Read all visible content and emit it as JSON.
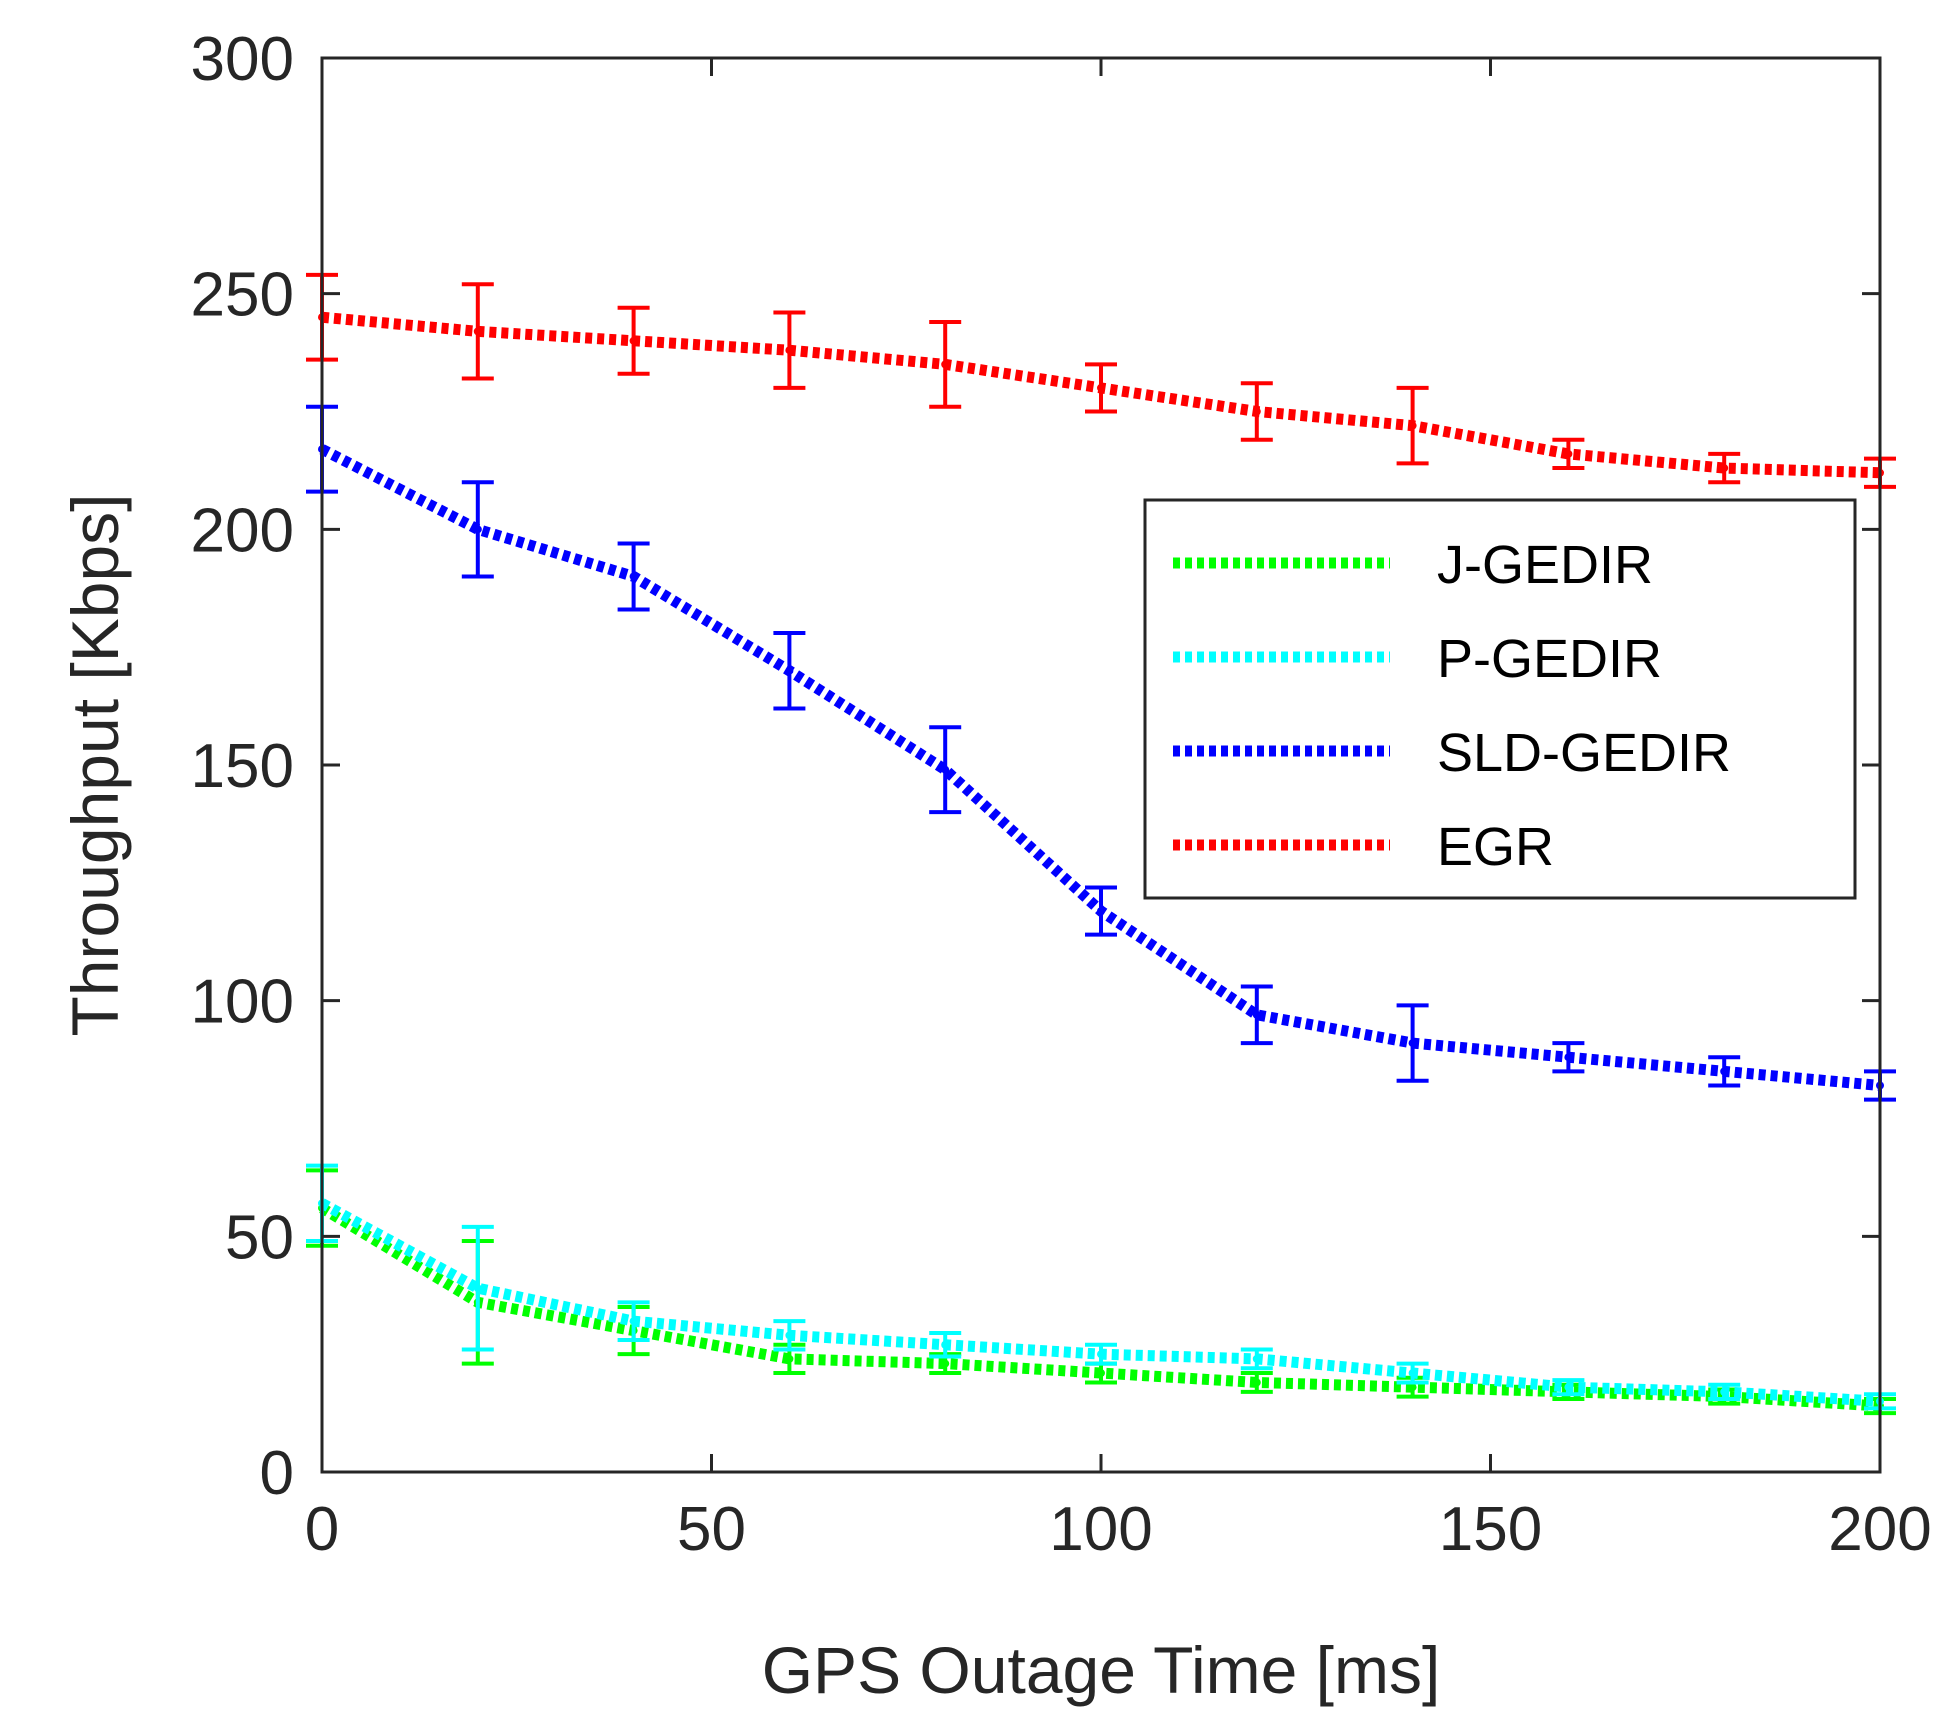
{
  "chart_data": {
    "type": "line",
    "xlabel": "GPS Outage Time [ms]",
    "ylabel": "Throughput [Kbps]",
    "xlim": [
      0,
      200
    ],
    "ylim": [
      0,
      300
    ],
    "xticks": [
      0,
      50,
      100,
      150,
      200
    ],
    "yticks": [
      0,
      50,
      100,
      150,
      200,
      250,
      300
    ],
    "xtick_labels": [
      "0",
      "50",
      "100",
      "150",
      "200"
    ],
    "ytick_labels": [
      "0",
      "50",
      "100",
      "150",
      "200",
      "250",
      "300"
    ],
    "grid": false,
    "legend_position": "right",
    "x": [
      0,
      20,
      40,
      60,
      80,
      100,
      120,
      140,
      160,
      180,
      200
    ],
    "series": [
      {
        "name": "J-GEDIR",
        "color": "#00ff00",
        "values": [
          56,
          36,
          30,
          24,
          23,
          21,
          19,
          18,
          17,
          16,
          14
        ],
        "errors": [
          8,
          13,
          5,
          3,
          2,
          2,
          2,
          2,
          1.5,
          1.5,
          1.5
        ]
      },
      {
        "name": "P-GEDIR",
        "color": "#00ffff",
        "values": [
          57,
          39,
          32,
          29,
          27,
          25,
          24,
          21,
          18,
          17,
          15
        ],
        "errors": [
          8,
          13,
          4,
          3,
          2.5,
          2,
          2,
          2,
          1.5,
          1.5,
          1.5
        ]
      },
      {
        "name": "SLD-GEDIR",
        "color": "#0000ff",
        "values": [
          217,
          200,
          190,
          170,
          149,
          119,
          97,
          91,
          88,
          85,
          82
        ],
        "errors": [
          9,
          10,
          7,
          8,
          9,
          5,
          6,
          8,
          3,
          3,
          3
        ]
      },
      {
        "name": "EGR",
        "color": "#ff0000",
        "values": [
          245,
          242,
          240,
          238,
          235,
          230,
          225,
          222,
          216,
          213,
          212
        ],
        "errors": [
          9,
          10,
          7,
          8,
          9,
          5,
          6,
          8,
          3,
          3,
          3
        ]
      }
    ]
  }
}
